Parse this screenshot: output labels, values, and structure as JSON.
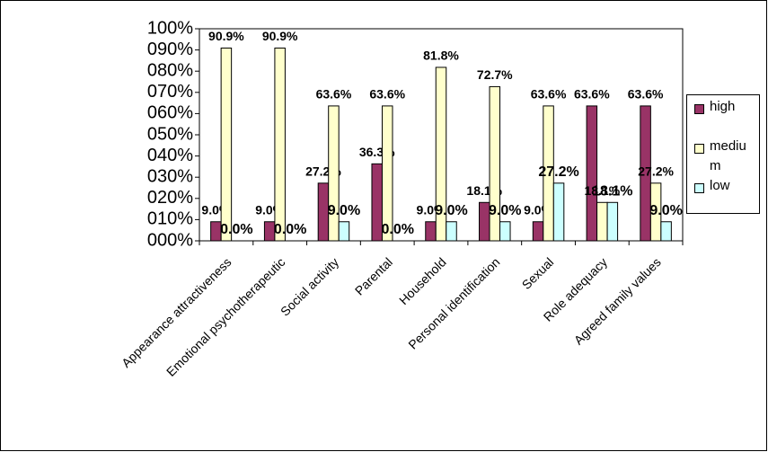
{
  "chart_data": {
    "type": "bar",
    "categories": [
      "Appearance attractiveness",
      "Emotional psychotherapeutic",
      "Social activity",
      "Parental",
      "Household",
      "Personal identification",
      "Sexual",
      "Role adequacy",
      "Agreed family values"
    ],
    "series": [
      {
        "name": "high",
        "color": "#993366",
        "values": [
          9.0,
          9.0,
          27.2,
          36.3,
          9.0,
          18.1,
          9.0,
          63.6,
          63.6
        ],
        "value_labels": [
          "9.0%",
          "9.0%",
          "27.2%",
          "36.3%",
          "9.0%",
          "18.1%",
          "9.0%",
          "63.6%",
          "63.6%"
        ]
      },
      {
        "name": "medium",
        "color": "#ffffcc",
        "values": [
          90.9,
          90.9,
          63.6,
          63.6,
          81.8,
          72.7,
          63.6,
          18.1,
          27.2
        ],
        "value_labels": [
          "90.9%",
          "90.9%",
          "63.6%",
          "63.6%",
          "81.8%",
          "72.7%",
          "63.6%",
          "18.1%",
          "27.2%"
        ]
      },
      {
        "name": "low",
        "color": "#ccffff",
        "values": [
          0.0,
          0.0,
          9.0,
          0.0,
          9.0,
          9.0,
          27.2,
          18.1,
          9.0
        ],
        "value_labels": [
          "0.0%",
          "0.0%",
          "9.0%",
          "0.0%",
          "9.0%",
          "9.0%",
          "27.2%",
          "18.1%",
          "9.0%"
        ]
      }
    ],
    "ylim": [
      0,
      100
    ],
    "yticks": [
      {
        "value": 0,
        "label": "000%"
      },
      {
        "value": 10,
        "label": "010%"
      },
      {
        "value": 20,
        "label": "020%"
      },
      {
        "value": 30,
        "label": "030%"
      },
      {
        "value": 40,
        "label": "040%"
      },
      {
        "value": 50,
        "label": "050%"
      },
      {
        "value": 60,
        "label": "060%"
      },
      {
        "value": 70,
        "label": "070%"
      },
      {
        "value": 80,
        "label": "080%"
      },
      {
        "value": 90,
        "label": "090%"
      },
      {
        "value": 100,
        "label": "100%"
      }
    ],
    "legend": "right"
  }
}
